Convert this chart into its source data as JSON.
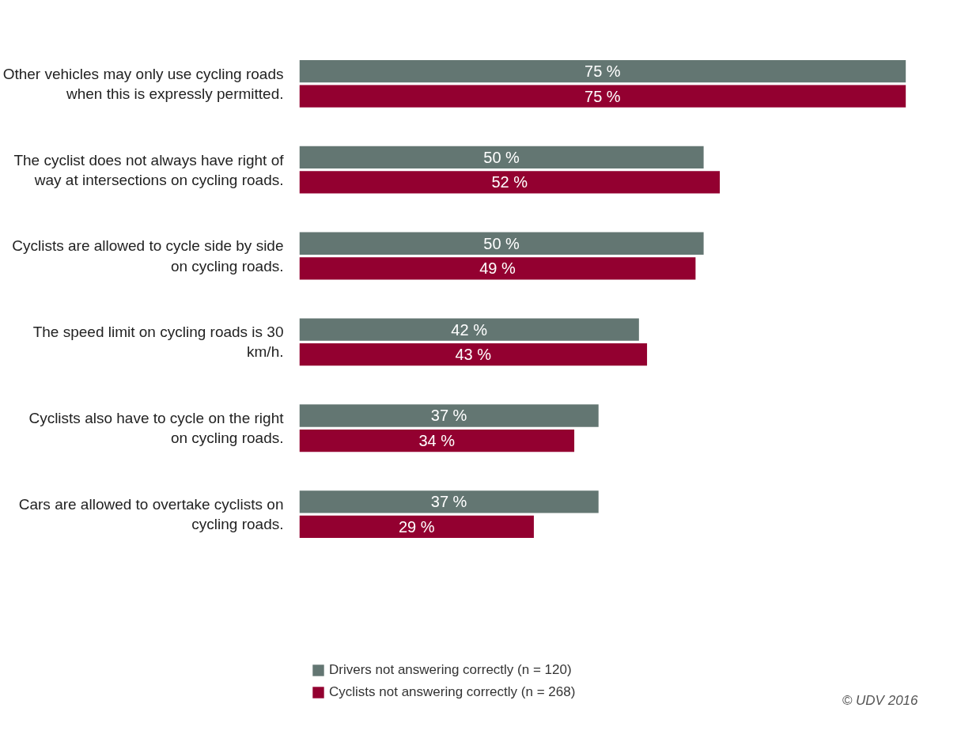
{
  "chart_data": {
    "type": "bar",
    "orientation": "horizontal",
    "categories": [
      "Other vehicles may only use cycling roads when this is expressly permitted.",
      "The cyclist does not always have right of way at intersections on cycling roads.",
      "Cyclists are allowed to cycle side by side on cycling roads.",
      "The speed limit on cycling roads is 30 km/h.",
      "Cyclists also have to cycle on the right on cycling roads.",
      "Cars are allowed to overtake cyclists on cycling roads."
    ],
    "series": [
      {
        "name": "Drivers not answering correctly (n = 120)",
        "color": "#637672",
        "values": [
          75,
          50,
          50,
          42,
          37,
          37
        ],
        "value_labels": [
          "75 %",
          "50 %",
          "50 %",
          "42 %",
          "37 %",
          "37 %"
        ]
      },
      {
        "name": "Cyclists not answering correctly (n = 268)",
        "color": "#930030",
        "values": [
          75,
          52,
          49,
          43,
          34,
          29
        ],
        "value_labels": [
          "75 %",
          "52 %",
          "49 %",
          "43 %",
          "34 %",
          "29 %"
        ]
      }
    ],
    "legend": "bottom",
    "grid": false,
    "tick_labels": "y",
    "annotations": [
      "© UDV 2016"
    ]
  }
}
